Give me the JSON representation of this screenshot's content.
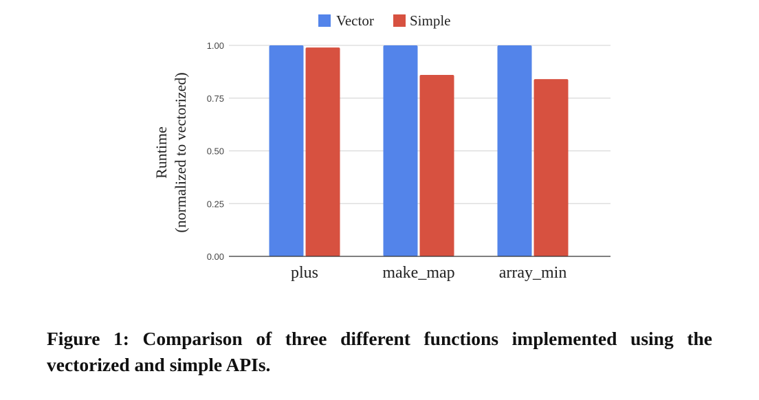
{
  "chart_data": {
    "type": "bar",
    "title": "",
    "categories": [
      "plus",
      "make_map",
      "array_min"
    ],
    "series": [
      {
        "name": "Vector",
        "color": "#5384EA",
        "values": [
          1.0,
          1.0,
          1.0
        ]
      },
      {
        "name": "Simple",
        "color": "#D75140",
        "values": [
          0.99,
          0.86,
          0.84
        ]
      }
    ],
    "xlabel": "",
    "ylabel_line1": "Runtime",
    "ylabel_line2": "(normalized to vectorized)",
    "ylim": [
      0,
      1.0
    ],
    "yticks": [
      "0.00",
      "0.25",
      "0.50",
      "0.75",
      "1.00"
    ],
    "grid": true,
    "legend_position": "top"
  },
  "caption": {
    "text": "Figure 1: Comparison of three different functions implemented using the vectorized and simple APIs."
  }
}
